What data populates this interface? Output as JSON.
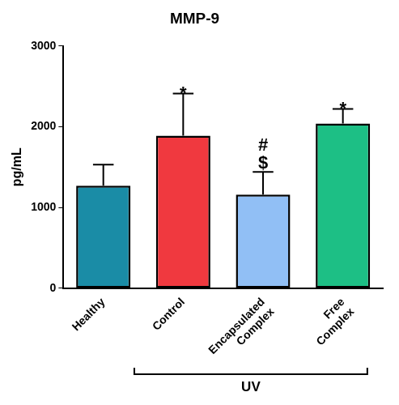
{
  "chart_data": {
    "type": "bar",
    "title": "MMP-9",
    "y_label": "pg/mL",
    "categories": [
      "Healthy",
      "Control",
      "Encapsulated Complex",
      "Free Complex"
    ],
    "values": [
      1270,
      1890,
      1160,
      2040
    ],
    "errors": [
      260,
      520,
      280,
      180
    ],
    "colors": [
      "#1a8ca6",
      "#f0393f",
      "#91bff5",
      "#1dbf85"
    ],
    "ylim": [
      0,
      3000
    ],
    "yticks": [
      0,
      1000,
      2000,
      3000
    ],
    "grid": false,
    "annotations": [
      {
        "category": "Control",
        "labels": [
          "*"
        ]
      },
      {
        "category": "Encapsulated Complex",
        "labels": [
          "#",
          "$"
        ]
      },
      {
        "category": "Free Complex",
        "labels": [
          "*"
        ]
      }
    ],
    "bracket": {
      "label": "UV",
      "categories": [
        "Control",
        "Encapsulated Complex",
        "Free Complex"
      ]
    }
  }
}
